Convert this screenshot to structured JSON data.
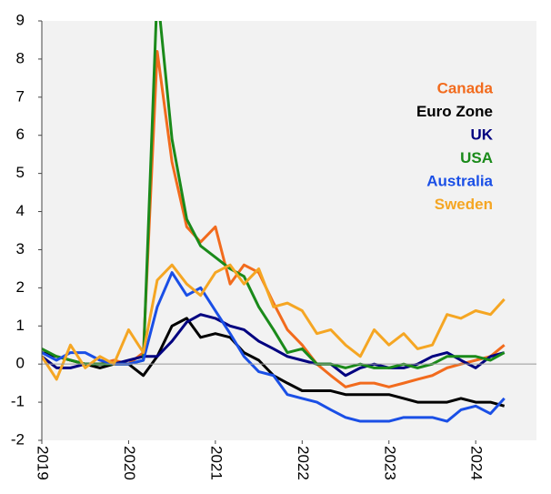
{
  "chart_data": {
    "type": "line",
    "x": [
      2019.0,
      2019.17,
      2019.33,
      2019.5,
      2019.67,
      2019.83,
      2020.0,
      2020.17,
      2020.33,
      2020.5,
      2020.67,
      2020.83,
      2021.0,
      2021.17,
      2021.33,
      2021.5,
      2021.67,
      2021.83,
      2022.0,
      2022.17,
      2022.33,
      2022.5,
      2022.67,
      2022.83,
      2023.0,
      2023.17,
      2023.33,
      2023.5,
      2023.67,
      2023.83,
      2024.0,
      2024.17,
      2024.33
    ],
    "series": [
      {
        "name": "Canada",
        "color": "#f26b1d",
        "values": [
          0.3,
          0.2,
          0.1,
          0,
          0,
          0.1,
          0,
          0.3,
          8.2,
          5.3,
          3.6,
          3.2,
          3.6,
          2.1,
          2.6,
          2.4,
          1.6,
          0.9,
          0.5,
          0,
          -0.3,
          -0.6,
          -0.5,
          -0.5,
          -0.6,
          -0.5,
          -0.4,
          -0.3,
          -0.1,
          0,
          0.1,
          0.2,
          0.5
        ]
      },
      {
        "name": "Euro Zone",
        "color": "#000000",
        "values": [
          0.3,
          0.2,
          0.1,
          0,
          -0.1,
          0,
          0,
          -0.3,
          0.2,
          1.0,
          1.2,
          0.7,
          0.8,
          0.7,
          0.3,
          0.1,
          -0.3,
          -0.5,
          -0.7,
          -0.7,
          -0.7,
          -0.8,
          -0.8,
          -0.8,
          -0.8,
          -0.9,
          -1.0,
          -1.0,
          -1.0,
          -0.9,
          -1.0,
          -1.0,
          -1.1
        ]
      },
      {
        "name": "UK",
        "color": "#000080",
        "values": [
          0.2,
          -0.1,
          -0.1,
          0,
          0,
          0,
          0.1,
          0.2,
          0.2,
          0.6,
          1.1,
          1.3,
          1.2,
          1.0,
          0.9,
          0.6,
          0.4,
          0.2,
          0.1,
          0,
          0,
          -0.3,
          -0.1,
          0,
          -0.1,
          -0.1,
          0,
          0.2,
          0.3,
          0.1,
          -0.1,
          0.2,
          0.3
        ]
      },
      {
        "name": "USA",
        "color": "#1a8a1a",
        "values": [
          0.4,
          0.2,
          0.1,
          0,
          0,
          0,
          0,
          0.1,
          9.8,
          5.9,
          3.8,
          3.1,
          2.8,
          2.5,
          2.3,
          1.5,
          0.9,
          0.3,
          0.4,
          0,
          0,
          -0.1,
          0,
          -0.1,
          -0.1,
          0,
          -0.1,
          0,
          0.2,
          0.2,
          0.2,
          0.1,
          0.3
        ]
      },
      {
        "name": "Australia",
        "color": "#1a4fe6",
        "values": [
          0.3,
          0.1,
          0.3,
          0.3,
          0.1,
          0,
          0,
          0.1,
          1.5,
          2.4,
          1.8,
          2.0,
          1.4,
          0.8,
          0.2,
          -0.2,
          -0.3,
          -0.8,
          -0.9,
          -1.0,
          -1.2,
          -1.4,
          -1.5,
          -1.5,
          -1.5,
          -1.4,
          -1.4,
          -1.4,
          -1.5,
          -1.2,
          -1.1,
          -1.3,
          -0.9
        ]
      },
      {
        "name": "Sweden",
        "color": "#f5a623",
        "values": [
          0.2,
          -0.4,
          0.5,
          -0.1,
          0.2,
          0,
          0.9,
          0.3,
          2.2,
          2.6,
          2.1,
          1.8,
          2.4,
          2.6,
          2.1,
          2.5,
          1.5,
          1.6,
          1.4,
          0.8,
          0.9,
          0.5,
          0.2,
          0.9,
          0.5,
          0.8,
          0.4,
          0.5,
          1.3,
          1.2,
          1.4,
          1.3,
          1.7
        ]
      }
    ],
    "xlim": [
      2019,
      2024.7
    ],
    "xticks": [
      2019,
      2020,
      2021,
      2022,
      2023,
      2024
    ],
    "ylim": [
      -2,
      9
    ],
    "yticks": [
      -2,
      -1,
      0,
      1,
      2,
      3,
      4,
      5,
      6,
      7,
      8,
      9
    ],
    "legend": "upper right",
    "grid": false
  }
}
